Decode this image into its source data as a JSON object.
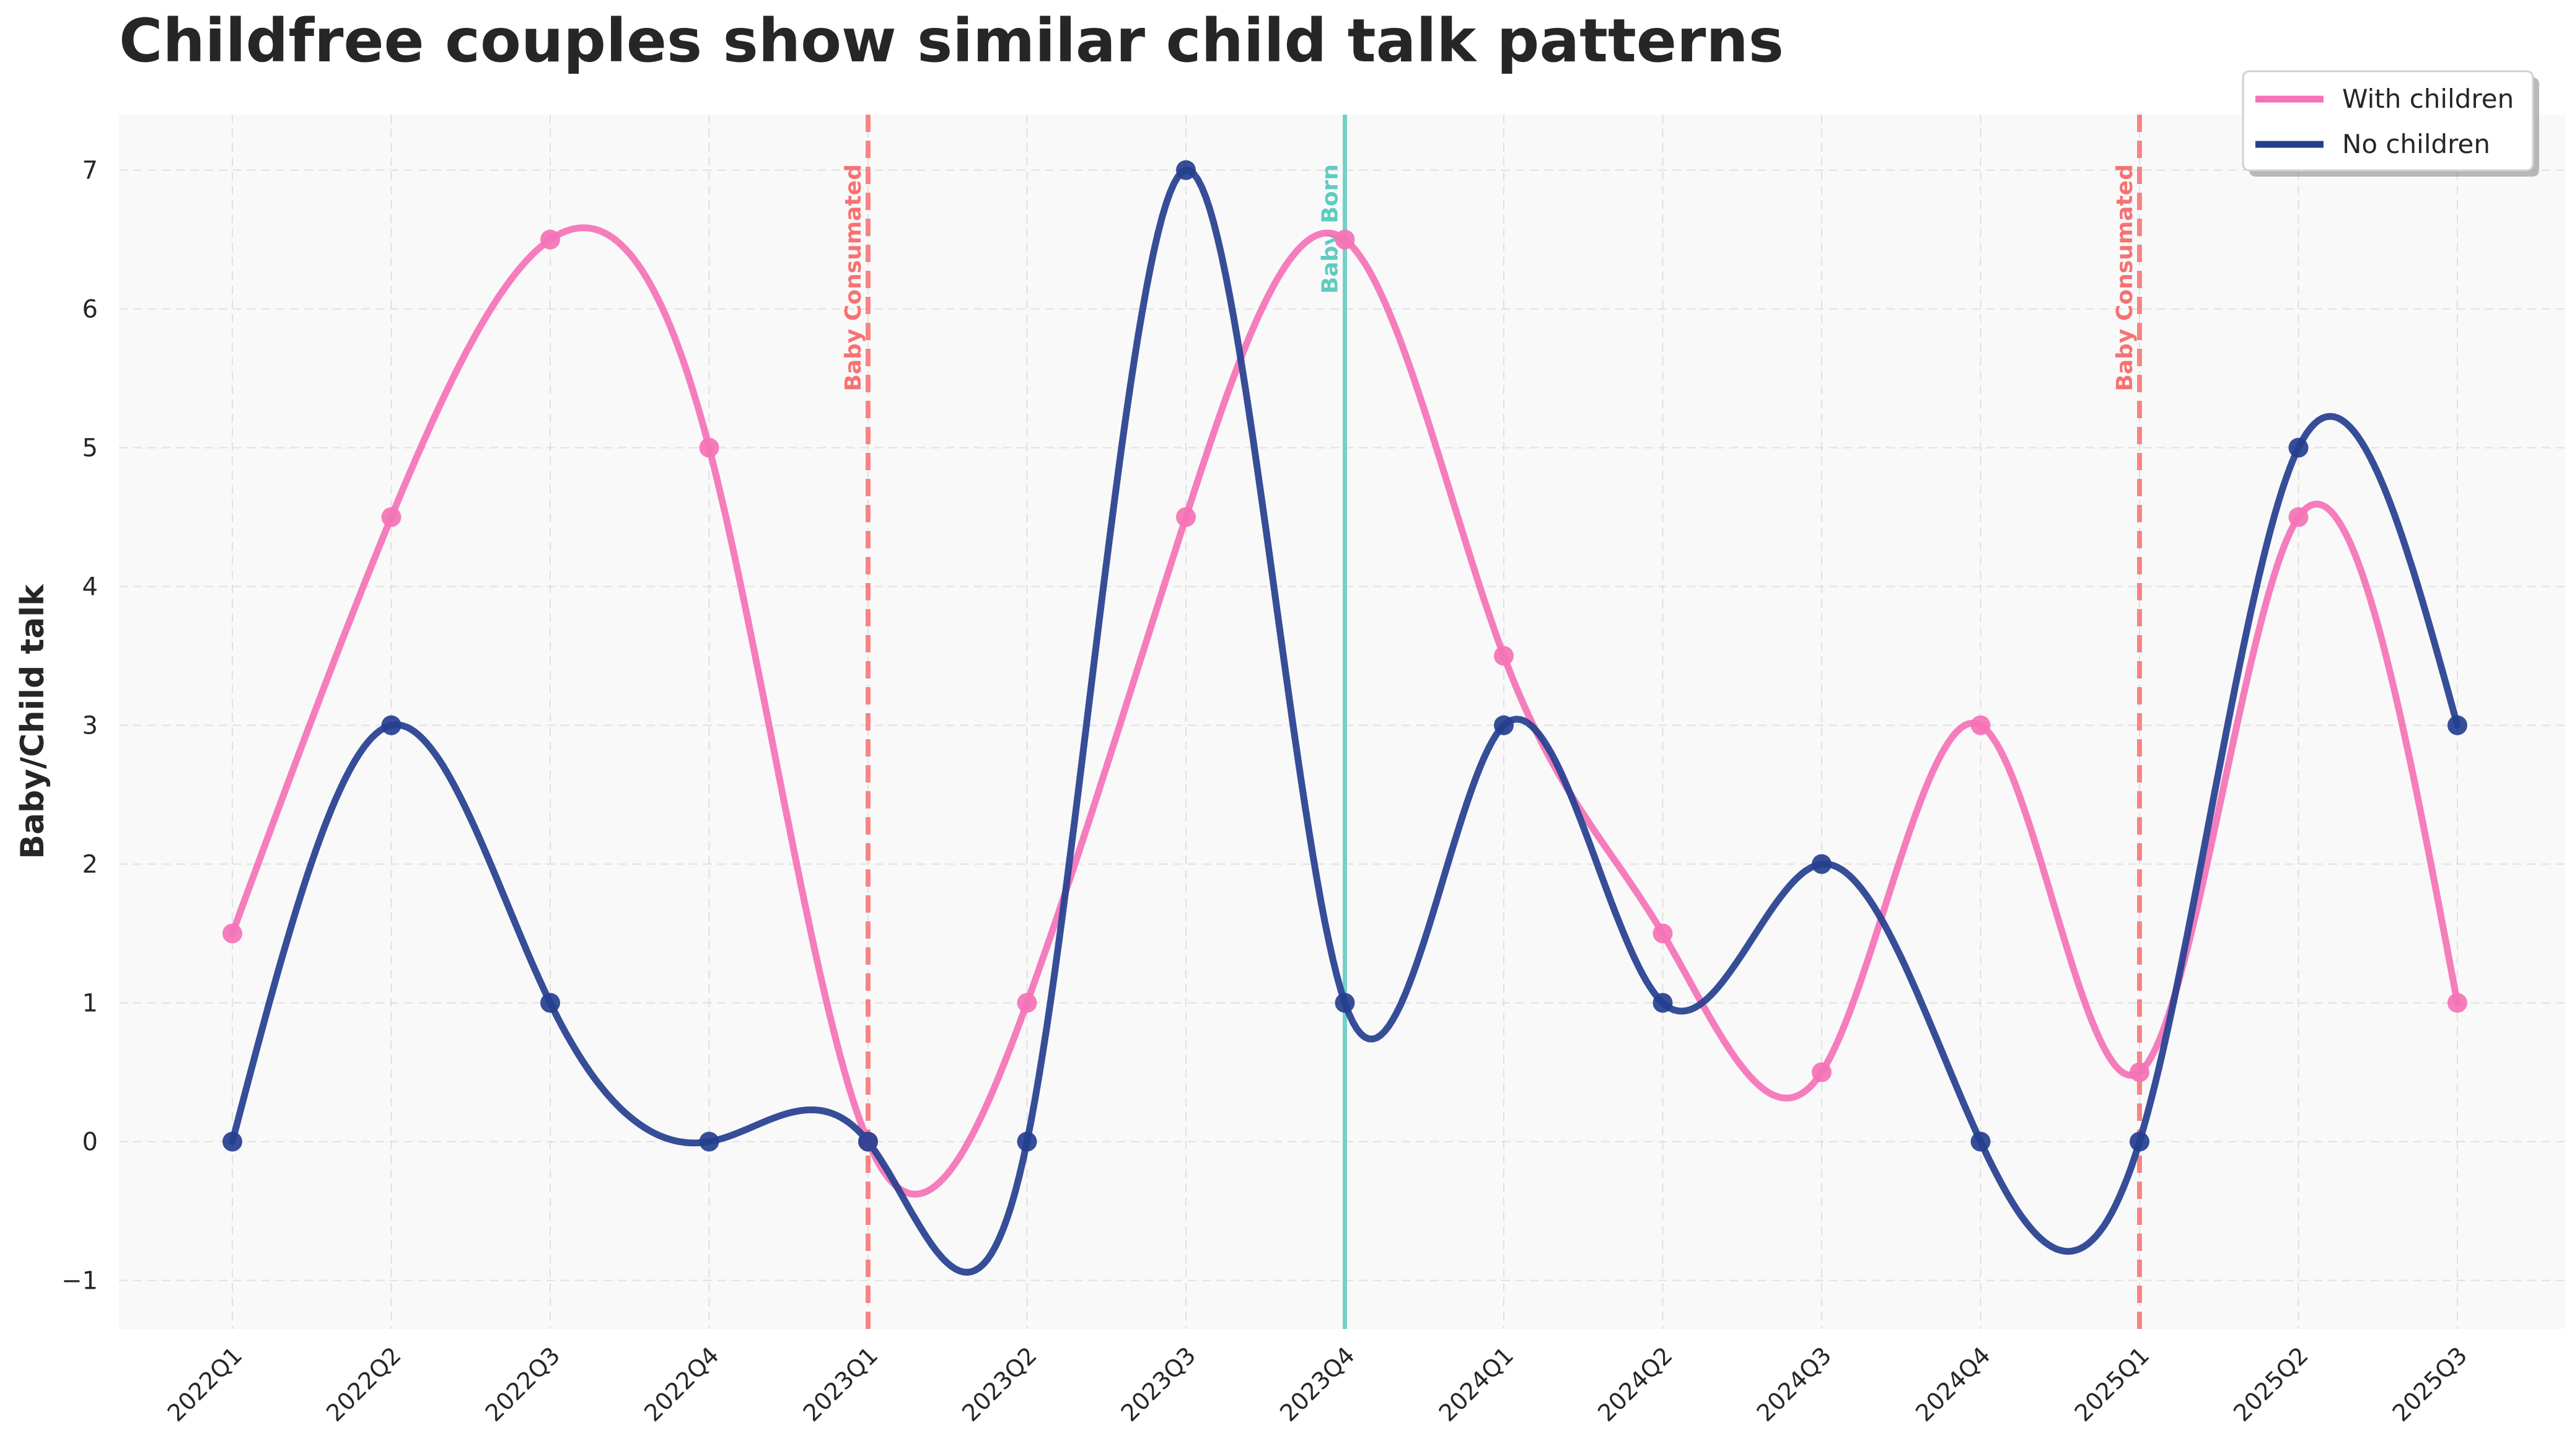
{
  "chart_data": {
    "type": "line",
    "title": "Childfree couples show similar child talk patterns",
    "xlabel": "",
    "ylabel": "Baby/Child talk",
    "categories": [
      "2022Q1",
      "2022Q2",
      "2022Q3",
      "2022Q4",
      "2023Q1",
      "2023Q2",
      "2023Q3",
      "2023Q4",
      "2024Q1",
      "2024Q2",
      "2024Q3",
      "2024Q4",
      "2025Q1",
      "2025Q2",
      "2025Q3"
    ],
    "series": [
      {
        "name": "With children",
        "color": "#f472b6",
        "values": [
          1.5,
          4.5,
          6.5,
          5.0,
          0.0,
          1.0,
          4.5,
          6.5,
          3.5,
          1.5,
          0.5,
          3.0,
          0.5,
          4.5,
          1.0
        ]
      },
      {
        "name": "No children",
        "color": "#253f8f",
        "values": [
          0.0,
          3.0,
          1.0,
          0.0,
          0.0,
          0.0,
          7.0,
          1.0,
          3.0,
          1.0,
          2.0,
          0.0,
          0.0,
          5.0,
          3.0
        ]
      }
    ],
    "ylim": [
      -1.35,
      7.4
    ],
    "yticks": [
      -1,
      0,
      1,
      2,
      3,
      4,
      5,
      6,
      7
    ],
    "ytick_labels": [
      "−1",
      "0",
      "1",
      "2",
      "3",
      "4",
      "5",
      "6",
      "7"
    ],
    "grid": true,
    "legend_position": "top-right",
    "annotations": [
      {
        "x": "2023Q1",
        "label": "Baby Consumated",
        "color": "#f87171",
        "style": "dashed"
      },
      {
        "x": "2023Q4",
        "label": "Baby Born",
        "color": "#5eccc0",
        "style": "solid"
      },
      {
        "x": "2025Q1",
        "label": "Baby Consumated",
        "color": "#f87171",
        "style": "dashed"
      }
    ]
  }
}
